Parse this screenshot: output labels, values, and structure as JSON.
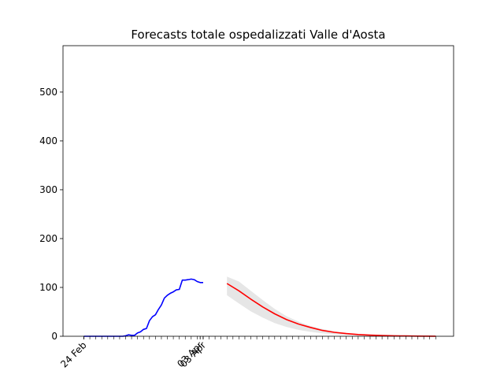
{
  "chart_data": {
    "type": "line",
    "title": "Forecasts totale ospedalizzati Valle d'Aosta",
    "xlabel": "",
    "ylabel": "",
    "ylim": [
      0,
      595
    ],
    "xlim": [
      -7,
      124
    ],
    "grid": false,
    "legend": "none",
    "yticks": [
      0,
      100,
      200,
      300,
      400,
      500
    ],
    "xtick_labels": [
      {
        "day": 0,
        "label": "24 Feb"
      },
      {
        "day": 39,
        "label": "03 Apr"
      },
      {
        "day": 40,
        "label": "03 Apr"
      }
    ],
    "minor_xtick_days": [
      0,
      118
    ],
    "colors": {
      "observed": "#0000ff",
      "forecast": "#ff0000",
      "band": "#e6e6e6"
    },
    "observed": {
      "x_days": [
        0,
        1,
        2,
        3,
        4,
        5,
        6,
        7,
        8,
        9,
        10,
        11,
        12,
        13,
        14,
        15,
        16,
        17,
        18,
        19,
        20,
        21,
        22,
        23,
        24,
        25,
        26,
        27,
        28,
        29,
        30,
        31,
        32,
        33,
        34,
        35,
        36,
        37,
        38,
        39,
        40
      ],
      "y": [
        0,
        0,
        0,
        0,
        0,
        0,
        0,
        0,
        0,
        0,
        0,
        0,
        0,
        0,
        1,
        3,
        2,
        2,
        7,
        9,
        14,
        16,
        32,
        40,
        44,
        55,
        64,
        78,
        84,
        88,
        91,
        95,
        96,
        115,
        115,
        116,
        117,
        116,
        112,
        110,
        110
      ]
    },
    "forecast": {
      "x_days": [
        48,
        52,
        56,
        60,
        64,
        68,
        72,
        76,
        80,
        84,
        88,
        92,
        96,
        100,
        104,
        108,
        112,
        118
      ],
      "y": [
        108,
        93,
        76,
        60,
        46,
        34,
        25,
        18,
        12,
        8,
        5.5,
        3.5,
        2.3,
        1.5,
        1,
        0.6,
        0.4,
        0.2
      ],
      "lower": [
        84,
        67,
        51,
        38,
        27,
        19,
        13,
        9,
        6,
        4,
        2.5,
        1.6,
        1,
        0.6,
        0.4,
        0.2,
        0.1,
        0
      ],
      "upper": [
        122,
        112,
        93,
        74,
        56,
        41,
        30,
        21,
        15,
        10,
        6.5,
        4.3,
        2.8,
        1.8,
        1.2,
        0.8,
        0.5,
        0.3
      ]
    }
  }
}
